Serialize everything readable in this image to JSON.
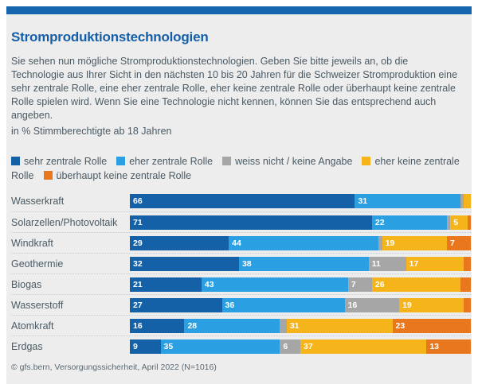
{
  "header": {
    "title": "Stromproduktionstechnologien"
  },
  "intro": {
    "paragraph": "Sie sehen nun mögliche Stromproduktionstechnologien. Geben Sie bitte jeweils an, ob die Technologie aus Ihrer Sicht in den nächsten 10 bis 20 Jahren für die Schweizer Stromproduktion eine sehr zentrale Rolle, eine eher zentrale Rolle, eher keine zentrale Rolle oder überhaupt keine zentrale Rolle spielen wird. Wenn Sie eine Technologie nicht kennen, können Sie das entsprechend auch angeben.",
    "note": "in % Stimmberechtigte ab 18 Jahren"
  },
  "colors": {
    "brand_stripe": "#1565ae",
    "title_blue": "#155fa8",
    "panel_background": "#ededed",
    "text": "#4a5a64"
  },
  "chart_data": {
    "type": "bar",
    "orientation": "horizontal",
    "stacked": true,
    "unit": "%",
    "xlim": [
      0,
      100
    ],
    "value_label_min": 5,
    "legend_position": "top",
    "grid": false,
    "categories": [
      "Wasserkraft",
      "Solarzellen/Photovoltaik",
      "Windkraft",
      "Geothermie",
      "Biogas",
      "Wasserstoff",
      "Atomkraft",
      "Erdgas"
    ],
    "series": [
      {
        "name": "sehr zentrale Rolle",
        "color": "#1561a8",
        "values": [
          66,
          71,
          29,
          32,
          21,
          27,
          16,
          9
        ]
      },
      {
        "name": "eher zentrale Rolle",
        "color": "#2aa0e2",
        "values": [
          31,
          22,
          44,
          38,
          43,
          36,
          28,
          35
        ]
      },
      {
        "name": "weiss nicht / keine Angabe",
        "color": "#a6a6a6",
        "values": [
          1,
          1,
          1,
          11,
          7,
          16,
          2,
          6
        ]
      },
      {
        "name": "eher keine zentrale Rolle",
        "color": "#f6b41b",
        "values": [
          2,
          5,
          19,
          17,
          26,
          19,
          31,
          37
        ]
      },
      {
        "name": "überhaupt keine zentrale Rolle",
        "color": "#e8771e",
        "values": [
          0,
          1,
          7,
          2,
          3,
          2,
          23,
          13
        ]
      }
    ]
  },
  "footer": {
    "source": "© gfs.bern, Versorgungssicherheit, April 2022 (N=1016)"
  }
}
